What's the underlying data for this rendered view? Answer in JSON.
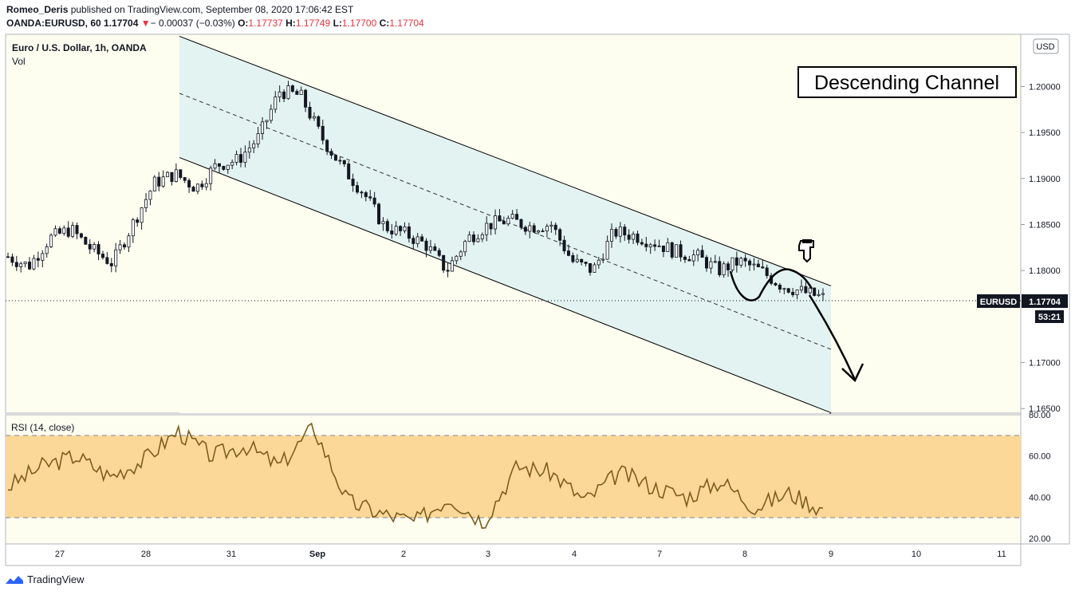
{
  "header": {
    "author": "Romeo_Deris",
    "published": " published on TradingView.com, September 08, 2020 17:06:42 EST",
    "symbol": "OANDA:EURUSD, 60",
    "last": "1.17704",
    "change": "− 0.00037 (−0.03%)",
    "o_label": "O:",
    "o": "1.17737",
    "h_label": "H:",
    "h": "1.17749",
    "l_label": "L:",
    "l": "1.17700",
    "c_label": "C:",
    "c": "1.17704"
  },
  "legend": {
    "title": "Euro / U.S. Dollar, 1h, OANDA",
    "vol": "Vol"
  },
  "annotation": {
    "label": "Descending Channel"
  },
  "axis": {
    "currency": "USD",
    "tag_symbol": "EURUSD",
    "tag_price": "1.17704",
    "countdown": "53:21"
  },
  "rsi": {
    "label": "RSI (14, close)"
  },
  "footer": {
    "brand": "TradingView"
  },
  "colors": {
    "up": "#ffffff",
    "down": "#131722",
    "channel_fill": "#e3f3f1",
    "rsi_band": "#fcd898",
    "rsi_line": "#7b5e1e"
  },
  "chart_data": [
    {
      "type": "candlestick",
      "title": "Euro / U.S. Dollar, 1h, OANDA",
      "x_ticks": [
        "27",
        "28",
        "31",
        "Sep",
        "2",
        "3",
        "4",
        "7",
        "8",
        "9",
        "10",
        "11"
      ],
      "y_ticks": [
        "1.20000",
        "1.19500",
        "1.19000",
        "1.18500",
        "1.18000",
        "1.17000",
        "1.16500"
      ],
      "ylim": [
        1.165,
        1.206
      ],
      "last_price": 1.17704,
      "close_path": [
        [
          "27",
          1.1815
        ],
        [
          "27",
          1.1805
        ],
        [
          "27",
          1.1835
        ],
        [
          "27",
          1.1845
        ],
        [
          "28",
          1.1823
        ],
        [
          "28",
          1.1808
        ],
        [
          "28",
          1.1852
        ],
        [
          "28",
          1.1895
        ],
        [
          "28",
          1.1905
        ],
        [
          "31",
          1.189
        ],
        [
          "31",
          1.1915
        ],
        [
          "31",
          1.192
        ],
        [
          "Sep",
          1.1945
        ],
        [
          "Sep",
          1.1995
        ],
        [
          "Sep",
          1.199
        ],
        [
          "Sep",
          1.1945
        ],
        [
          "2",
          1.1912
        ],
        [
          "2",
          1.1885
        ],
        [
          "2",
          1.1848
        ],
        [
          "2",
          1.184
        ],
        [
          "3",
          1.1828
        ],
        [
          "3",
          1.18
        ],
        [
          "3",
          1.1835
        ],
        [
          "3",
          1.185
        ],
        [
          "4",
          1.1855
        ],
        [
          "4",
          1.1848
        ],
        [
          "4",
          1.185
        ],
        [
          "4",
          1.181
        ],
        [
          "4",
          1.18
        ],
        [
          "7",
          1.1842
        ],
        [
          "7",
          1.1838
        ],
        [
          "7",
          1.183
        ],
        [
          "7",
          1.182
        ],
        [
          "8",
          1.1815
        ],
        [
          "8",
          1.18
        ],
        [
          "8",
          1.181
        ],
        [
          "8",
          1.18
        ],
        [
          "8",
          1.1784
        ],
        [
          "8",
          1.1777
        ],
        [
          "8",
          1.17704
        ]
      ],
      "channel": {
        "upper": [
          [
            "28",
            1.2045
          ],
          [
            "9",
            1.1788
          ]
        ],
        "lower": [
          [
            "28",
            1.193
          ],
          [
            "9",
            1.1653
          ]
        ],
        "mid": [
          [
            "28",
            1.1996
          ],
          [
            "9",
            1.1718
          ]
        ]
      }
    },
    {
      "type": "line",
      "title": "RSI (14, close)",
      "y_ticks": [
        "80.00",
        "60.00",
        "40.00",
        "20.00"
      ],
      "ylim": [
        20,
        80
      ],
      "bands": [
        30,
        70
      ],
      "series": [
        {
          "values": [
            [
              "27",
              45
            ],
            [
              "27",
              55
            ],
            [
              "27",
              60
            ],
            [
              "28",
              50
            ],
            [
              "28",
              58
            ],
            [
              "28",
              72
            ],
            [
              "31",
              60
            ],
            [
              "31",
              65
            ],
            [
              "Sep",
              55
            ],
            [
              "Sep",
              74
            ],
            [
              "2",
              38
            ],
            [
              "2",
              32
            ],
            [
              "3",
              28
            ],
            [
              "3",
              40
            ],
            [
              "3",
              28
            ],
            [
              "4",
              55
            ],
            [
              "4",
              52
            ],
            [
              "4",
              38
            ],
            [
              "7",
              52
            ],
            [
              "7",
              45
            ],
            [
              "8",
              40
            ],
            [
              "8",
              48
            ],
            [
              "8",
              35
            ],
            [
              "8",
              42
            ],
            [
              "9",
              34
            ]
          ]
        }
      ]
    }
  ]
}
